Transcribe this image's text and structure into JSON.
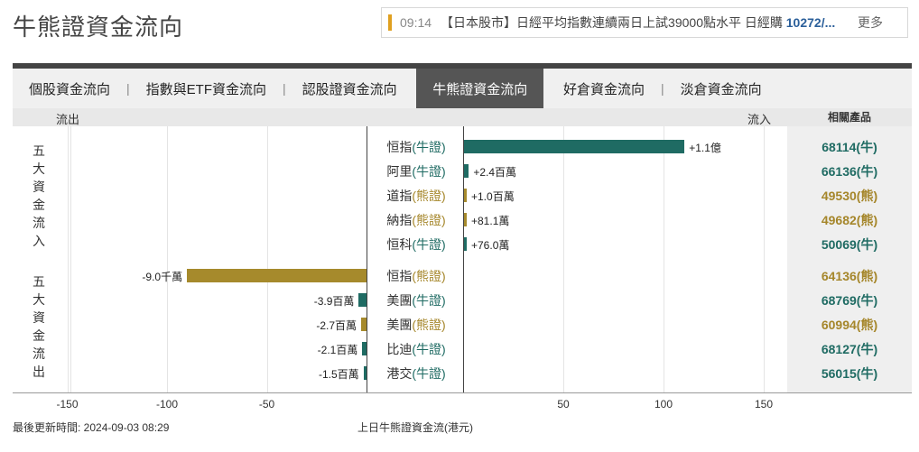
{
  "page_title": "牛熊證資金流向",
  "news": {
    "time": "09:14",
    "text": "【日本股市】日經平均指數連續兩日上試39000點水平 日經購",
    "highlight": "10272/...",
    "more": "更多"
  },
  "tabs": [
    {
      "label": "個股資金流向",
      "active": false
    },
    {
      "label": "指數與ETF資金流向",
      "active": false
    },
    {
      "label": "認股證資金流向",
      "active": false
    },
    {
      "label": "牛熊證資金流向",
      "active": true
    },
    {
      "label": "好倉資金流向",
      "active": false
    },
    {
      "label": "淡倉資金流向",
      "active": false
    }
  ],
  "tab_separator": "|",
  "header": {
    "outflow": "流出",
    "inflow": "流入",
    "related": "相關產品"
  },
  "groups": {
    "inflow_label": [
      "五",
      "大",
      "資",
      "金",
      "流",
      "入"
    ],
    "outflow_label": [
      "五",
      "大",
      "資",
      "金",
      "流",
      "出"
    ]
  },
  "colors": {
    "bull": "#1f6b63",
    "bear": "#a68a2c"
  },
  "chart_data": {
    "type": "bar",
    "orientation": "horizontal-diverging",
    "xlim": [
      -160,
      160
    ],
    "x_ticks": [
      -150,
      -100,
      -50,
      50,
      100,
      150
    ],
    "xlabel": "上日牛熊證資金流(港元)",
    "inflow": [
      {
        "index": "恒指",
        "kind": "牛證",
        "type": "bull",
        "value_m": 110,
        "label": "+1.1億",
        "product": "68114(牛)"
      },
      {
        "index": "阿里",
        "kind": "牛證",
        "type": "bull",
        "value_m": 2.4,
        "label": "+2.4百萬",
        "product": "66136(牛)"
      },
      {
        "index": "道指",
        "kind": "熊證",
        "type": "bear",
        "value_m": 1.0,
        "label": "+1.0百萬",
        "product": "49530(熊)"
      },
      {
        "index": "納指",
        "kind": "熊證",
        "type": "bear",
        "value_m": 0.811,
        "label": "+81.1萬",
        "product": "49682(熊)"
      },
      {
        "index": "恒科",
        "kind": "牛證",
        "type": "bull",
        "value_m": 0.76,
        "label": "+76.0萬",
        "product": "50069(牛)"
      }
    ],
    "outflow": [
      {
        "index": "恒指",
        "kind": "熊證",
        "type": "bear",
        "value_m": -90,
        "label": "-9.0千萬",
        "product": "64136(熊)"
      },
      {
        "index": "美團",
        "kind": "牛證",
        "type": "bull",
        "value_m": -3.9,
        "label": "-3.9百萬",
        "product": "68769(牛)"
      },
      {
        "index": "美團",
        "kind": "熊證",
        "type": "bear",
        "value_m": -2.7,
        "label": "-2.7百萬",
        "product": "60994(熊)"
      },
      {
        "index": "比迪",
        "kind": "牛證",
        "type": "bull",
        "value_m": -2.1,
        "label": "-2.1百萬",
        "product": "68127(牛)"
      },
      {
        "index": "港交",
        "kind": "牛證",
        "type": "bull",
        "value_m": -1.5,
        "label": "-1.5百萬",
        "product": "56015(牛)"
      }
    ]
  },
  "footer": {
    "updated": "最後更新時間: 2024-09-03 08:29"
  }
}
